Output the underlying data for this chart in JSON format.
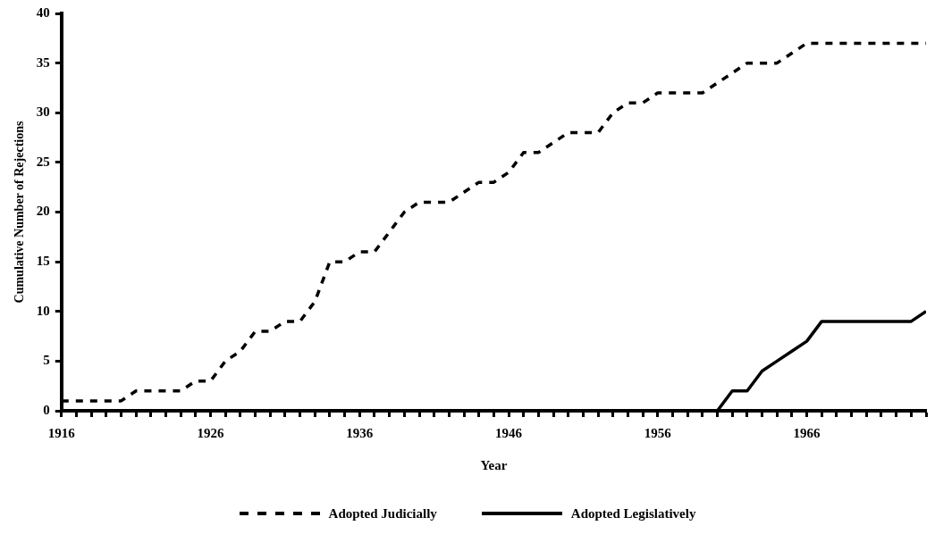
{
  "chart_data": {
    "type": "line",
    "xlabel": "Year",
    "ylabel": "Cumulative Number of Rejections",
    "x": [
      1916,
      1917,
      1918,
      1919,
      1920,
      1921,
      1922,
      1923,
      1924,
      1925,
      1926,
      1927,
      1928,
      1929,
      1930,
      1931,
      1932,
      1933,
      1934,
      1935,
      1936,
      1937,
      1938,
      1939,
      1940,
      1941,
      1942,
      1943,
      1944,
      1945,
      1946,
      1947,
      1948,
      1949,
      1950,
      1951,
      1952,
      1953,
      1954,
      1955,
      1956,
      1957,
      1958,
      1959,
      1960,
      1961,
      1962,
      1963,
      1964,
      1965,
      1966,
      1967,
      1968,
      1969,
      1970,
      1971,
      1972,
      1973,
      1974
    ],
    "series": [
      {
        "name": "Adopted Judicially",
        "color": "#000000",
        "line_style": "dashed",
        "values": [
          1,
          1,
          1,
          1,
          1,
          2,
          2,
          2,
          2,
          3,
          3,
          5,
          6,
          8,
          8,
          9,
          9,
          11,
          15,
          15,
          16,
          16,
          18,
          20,
          21,
          21,
          21,
          22,
          23,
          23,
          24,
          26,
          26,
          27,
          28,
          28,
          28,
          30,
          31,
          31,
          32,
          32,
          32,
          32,
          33,
          34,
          35,
          35,
          35,
          36,
          37,
          37,
          37,
          37,
          37,
          37,
          37,
          37,
          37
        ]
      },
      {
        "name": "Adopted Legislatively",
        "color": "#000000",
        "line_style": "solid",
        "values": [
          0,
          0,
          0,
          0,
          0,
          0,
          0,
          0,
          0,
          0,
          0,
          0,
          0,
          0,
          0,
          0,
          0,
          0,
          0,
          0,
          0,
          0,
          0,
          0,
          0,
          0,
          0,
          0,
          0,
          0,
          0,
          0,
          0,
          0,
          0,
          0,
          0,
          0,
          0,
          0,
          0,
          0,
          0,
          0,
          0,
          2,
          2,
          4,
          5,
          6,
          7,
          9,
          9,
          9,
          9,
          9,
          9,
          9,
          10
        ]
      }
    ],
    "xlim": [
      1916,
      1974
    ],
    "xticks": [
      1916,
      {
        "value": 1917,
        "label": null
      },
      {
        "value": 1918,
        "label": null
      },
      {
        "value": 1919,
        "label": null
      },
      {
        "value": 1920,
        "label": null
      },
      {
        "value": 1921,
        "label": null
      },
      {
        "value": 1922,
        "label": null
      },
      {
        "value": 1923,
        "label": null
      },
      {
        "value": 1924,
        "label": null
      },
      {
        "value": 1925,
        "label": null
      },
      1926,
      {
        "value": 1927,
        "label": null
      },
      {
        "value": 1928,
        "label": null
      },
      {
        "value": 1929,
        "label": null
      },
      {
        "value": 1930,
        "label": null
      },
      {
        "value": 1931,
        "label": null
      },
      {
        "value": 1932,
        "label": null
      },
      {
        "value": 1933,
        "label": null
      },
      {
        "value": 1934,
        "label": null
      },
      {
        "value": 1935,
        "label": null
      },
      1936,
      {
        "value": 1937,
        "label": null
      },
      {
        "value": 1938,
        "label": null
      },
      {
        "value": 1939,
        "label": null
      },
      {
        "value": 1940,
        "label": null
      },
      {
        "value": 1941,
        "label": null
      },
      {
        "value": 1942,
        "label": null
      },
      {
        "value": 1943,
        "label": null
      },
      {
        "value": 1944,
        "label": null
      },
      {
        "value": 1945,
        "label": null
      },
      1946,
      {
        "value": 1947,
        "label": null
      },
      {
        "value": 1948,
        "label": null
      },
      {
        "value": 1949,
        "label": null
      },
      {
        "value": 1950,
        "label": null
      },
      {
        "value": 1951,
        "label": null
      },
      {
        "value": 1952,
        "label": null
      },
      {
        "value": 1953,
        "label": null
      },
      {
        "value": 1954,
        "label": null
      },
      {
        "value": 1955,
        "label": null
      },
      1956,
      {
        "value": 1957,
        "label": null
      },
      {
        "value": 1958,
        "label": null
      },
      {
        "value": 1959,
        "label": null
      },
      {
        "value": 1960,
        "label": null
      },
      {
        "value": 1961,
        "label": null
      },
      {
        "value": 1962,
        "label": null
      },
      {
        "value": 1963,
        "label": null
      },
      {
        "value": 1964,
        "label": null
      },
      {
        "value": 1965,
        "label": null
      },
      1966,
      {
        "value": 1967,
        "label": null
      },
      {
        "value": 1968,
        "label": null
      },
      {
        "value": 1969,
        "label": null
      },
      {
        "value": 1970,
        "label": null
      },
      {
        "value": 1971,
        "label": null
      },
      {
        "value": 1972,
        "label": null
      },
      {
        "value": 1973,
        "label": null
      },
      {
        "value": 1974,
        "label": null
      }
    ],
    "ylim": [
      0,
      40
    ],
    "yticks": [
      0,
      5,
      10,
      15,
      20,
      25,
      30,
      35,
      40
    ],
    "grid": false,
    "legend": "bottom",
    "marker": "none"
  }
}
